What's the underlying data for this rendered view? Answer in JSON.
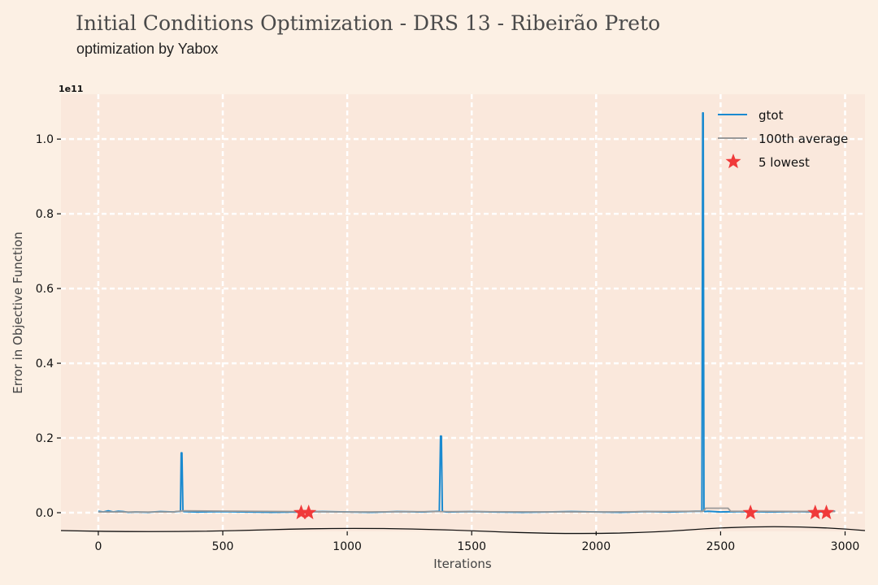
{
  "header": {
    "title": "Initial Conditions Optimization - DRS 13 - Ribeirão Preto",
    "subtitle": "optimization by Yabox"
  },
  "colors": {
    "background": "#fcf0e4",
    "plot_background": "#fae8dc",
    "gtot": "#1a8ad0",
    "average": "#999999",
    "lowest": "#f03a3a",
    "grid": "#ffffff"
  },
  "chart_data": {
    "type": "line",
    "title": "Initial Conditions Optimization - DRS 13 - Ribeirão Preto",
    "subtitle": "optimization by Yabox",
    "xlabel": "Iterations",
    "ylabel": "Error in Objective Function",
    "y_offset_label": "1e11",
    "xlim": [
      -150,
      3080
    ],
    "ylim": [
      -0.05,
      1.12
    ],
    "x_ticks": [
      0,
      500,
      1000,
      1500,
      2000,
      2500,
      3000
    ],
    "x_tick_labels": [
      "0",
      "500",
      "1000",
      "1500",
      "2000",
      "2500",
      "3000"
    ],
    "y_ticks": [
      0.0,
      0.2,
      0.4,
      0.6,
      0.8,
      1.0
    ],
    "y_tick_labels": [
      "0.0",
      "0.2",
      "0.4",
      "0.6",
      "0.8",
      "1.0"
    ],
    "grid": true,
    "legend_position": "top-right",
    "series": [
      {
        "name": "gtot",
        "x": [
          0,
          20,
          40,
          60,
          80,
          100,
          120,
          150,
          200,
          250,
          300,
          330,
          333,
          336,
          340,
          343,
          400,
          500,
          600,
          700,
          800,
          900,
          1000,
          1100,
          1200,
          1300,
          1370,
          1375,
          1378,
          1382,
          1385,
          1400,
          1500,
          1600,
          1700,
          1800,
          1900,
          2000,
          2100,
          2200,
          2300,
          2400,
          2425,
          2428,
          2430,
          2433,
          2436,
          2450,
          2500,
          2600,
          2700,
          2800,
          2900,
          2960
        ],
        "y": [
          0.004,
          0.002,
          0.005,
          0.002,
          0.004,
          0.003,
          0.001,
          0.002,
          0.001,
          0.003,
          0.002,
          0.004,
          0.16,
          0.16,
          0.005,
          0.003,
          0.002,
          0.003,
          0.002,
          0.001,
          0.002,
          0.003,
          0.002,
          0.001,
          0.003,
          0.002,
          0.004,
          0.205,
          0.205,
          0.005,
          0.003,
          0.002,
          0.003,
          0.002,
          0.001,
          0.002,
          0.003,
          0.002,
          0.001,
          0.003,
          0.002,
          0.004,
          0.004,
          1.07,
          1.07,
          0.006,
          0.003,
          0.004,
          0.002,
          0.003,
          0.002,
          0.003,
          0.002,
          0.004
        ]
      },
      {
        "name": "100th average",
        "x": [
          0,
          300,
          340,
          1000,
          1380,
          2000,
          2430,
          2440,
          2530,
          2540,
          2960
        ],
        "y": [
          0.002,
          0.002,
          0.005,
          0.002,
          0.003,
          0.002,
          0.004,
          0.012,
          0.012,
          0.004,
          0.003
        ]
      },
      {
        "name": "5 lowest",
        "type": "scatter",
        "x": [
          815,
          845,
          2620,
          2880,
          2925
        ],
        "y": [
          0.0,
          0.0,
          0.0,
          0.0,
          0.0
        ]
      }
    ]
  }
}
